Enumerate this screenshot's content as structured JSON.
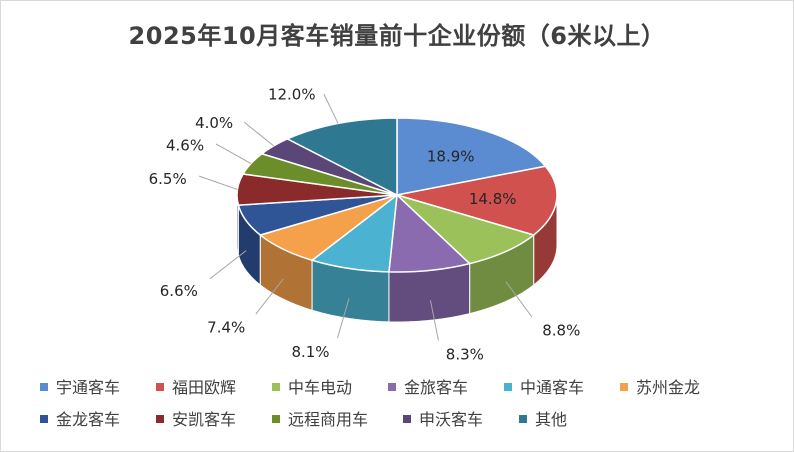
{
  "chart_data": {
    "type": "pie",
    "title": "2025年10月客车销量前十企业份额（6米以上）",
    "categories": [
      "宇通客车",
      "福田欧辉",
      "中车电动",
      "金旅客车",
      "中通客车",
      "苏州金龙",
      "金龙客车",
      "安凯客车",
      "远程商用车",
      "申沃客车",
      "其他"
    ],
    "values": [
      18.9,
      14.8,
      8.8,
      8.3,
      8.1,
      7.4,
      6.6,
      6.5,
      4.6,
      4.0,
      12.0
    ],
    "labels": [
      "18.9%",
      "14.8%",
      "8.8%",
      "8.3%",
      "8.1%",
      "7.4%",
      "6.6%",
      "6.5%",
      "4.6%",
      "4.0%",
      "12.0%"
    ],
    "colors": [
      "#5B8BD0",
      "#D0514E",
      "#9BC25A",
      "#8A6BB0",
      "#4BB3D1",
      "#F5A04A",
      "#2F5597",
      "#8B2A2A",
      "#6B8E2A",
      "#5A4677",
      "#2E7891"
    ],
    "legend_position": "bottom",
    "style": "3d-exploded-none"
  }
}
